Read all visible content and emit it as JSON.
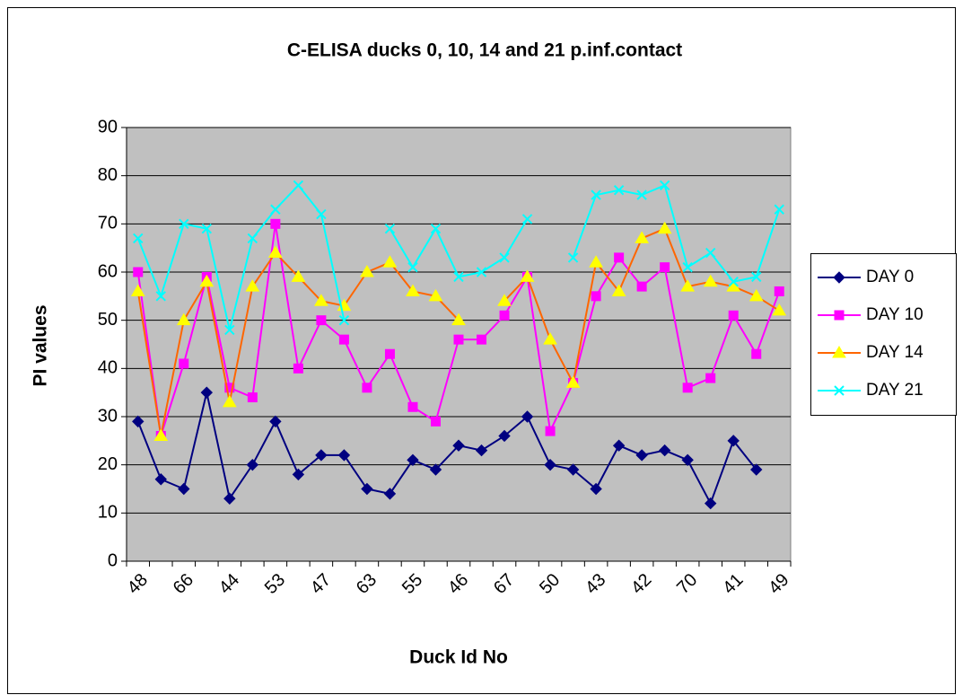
{
  "chart_data": {
    "type": "line",
    "title": "C-ELISA ducks 0, 10, 14 and 21 p.inf.contact",
    "x_label": "Duck Id No",
    "y_label": "PI values",
    "categories": [
      "48",
      null,
      "66",
      null,
      "44",
      null,
      "53",
      null,
      "47",
      null,
      "63",
      null,
      "55",
      null,
      "46",
      null,
      "67",
      null,
      "50",
      null,
      "43",
      null,
      "42",
      null,
      "70",
      null,
      "41",
      null,
      "49"
    ],
    "series": [
      {
        "name": "DAY 0",
        "color": "#000080",
        "marker": "diamond",
        "marker_color": "#000080",
        "values": [
          29,
          17,
          15,
          35,
          13,
          20,
          29,
          18,
          22,
          22,
          15,
          14,
          21,
          19,
          24,
          23,
          26,
          30,
          20,
          19,
          15,
          24,
          22,
          23,
          21,
          12,
          25,
          19,
          null
        ]
      },
      {
        "name": "DAY 10",
        "color": "#ff00ff",
        "marker": "square",
        "marker_color": "#ff00ff",
        "values": [
          60,
          26,
          41,
          59,
          36,
          34,
          70,
          40,
          50,
          46,
          36,
          43,
          32,
          29,
          46,
          46,
          51,
          59,
          27,
          37,
          55,
          63,
          57,
          61,
          36,
          38,
          51,
          43,
          56
        ]
      },
      {
        "name": "DAY 14",
        "color": "#ff6600",
        "marker": "triangle",
        "marker_color": "#ffff00",
        "values": [
          56,
          26,
          50,
          58,
          33,
          57,
          64,
          59,
          54,
          53,
          60,
          62,
          56,
          55,
          50,
          null,
          54,
          59,
          46,
          37,
          62,
          56,
          67,
          69,
          57,
          58,
          57,
          55,
          52
        ]
      },
      {
        "name": "DAY 21",
        "color": "#00ffff",
        "marker": "x",
        "marker_color": "#00ffff",
        "values": [
          67,
          55,
          70,
          69,
          48,
          67,
          73,
          78,
          72,
          50,
          null,
          69,
          61,
          69,
          59,
          60,
          63,
          71,
          null,
          63,
          76,
          77,
          76,
          78,
          61,
          64,
          58,
          59,
          73
        ]
      }
    ],
    "ylim": [
      0,
      90
    ],
    "yticks": [
      0,
      10,
      20,
      30,
      40,
      50,
      60,
      70,
      80,
      90
    ],
    "grid": true,
    "plot_background": "#c0c0c0",
    "legend": "right"
  }
}
